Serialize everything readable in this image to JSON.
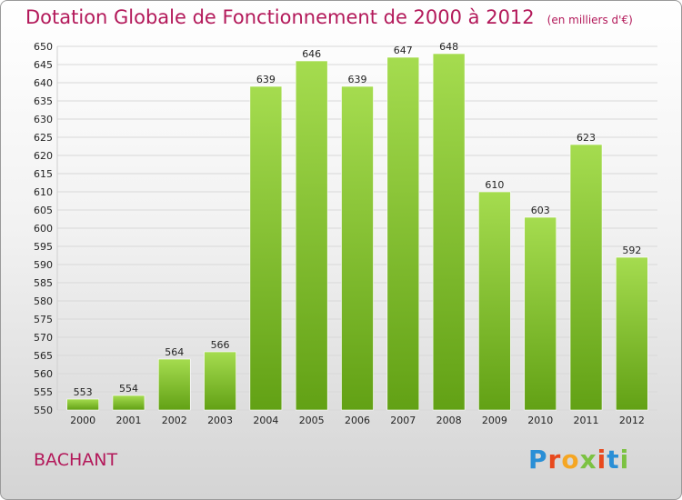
{
  "header": {
    "title": "Dotation Globale de Fonctionnement de 2000 à 2012",
    "unit": "(en milliers d'€)"
  },
  "footer": {
    "commune": "BACHANT",
    "logo_text": "Proxiti",
    "logo_colors": [
      "#2a8fd6",
      "#e8491d",
      "#f5a623",
      "#7cc242",
      "#e8491d",
      "#2a8fd6",
      "#7cc242"
    ]
  },
  "colors": {
    "title": "#b3195a",
    "bar_light": "#a5dc4f",
    "bar_dark": "#62a115",
    "grid": "#d8d8d8",
    "axis_text": "#222222"
  },
  "chart_data": {
    "type": "bar",
    "categories": [
      "2000",
      "2001",
      "2002",
      "2003",
      "2004",
      "2005",
      "2006",
      "2007",
      "2008",
      "2009",
      "2010",
      "2011",
      "2012"
    ],
    "values": [
      553,
      554,
      564,
      566,
      639,
      646,
      639,
      647,
      648,
      610,
      603,
      623,
      592
    ],
    "ylim": [
      550,
      650
    ],
    "ytick_step": 5,
    "grid": true,
    "xlabel": "",
    "ylabel": ""
  }
}
